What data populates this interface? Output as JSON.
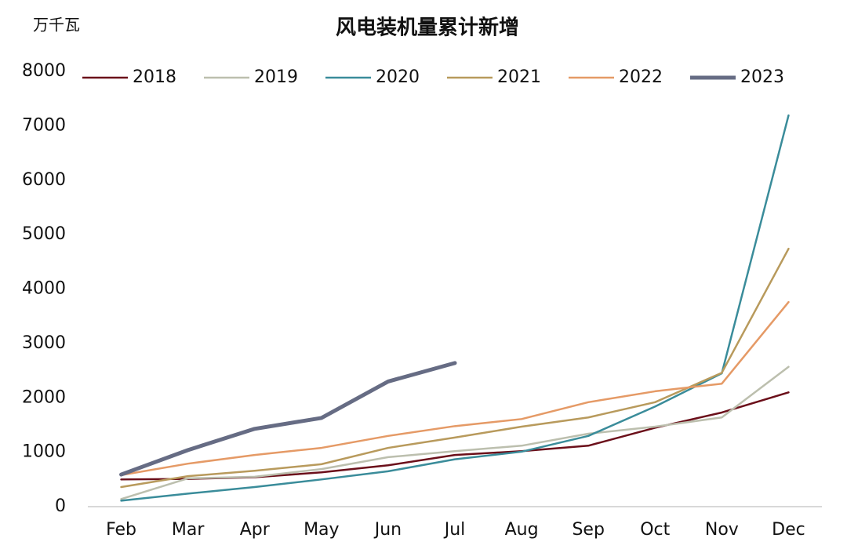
{
  "chart_data": {
    "type": "line",
    "title": "风电装机量累计新增",
    "y_label": "万千瓦",
    "categories": [
      "Feb",
      "Mar",
      "Apr",
      "May",
      "Jun",
      "Jul",
      "Aug",
      "Sep",
      "Oct",
      "Nov",
      "Dec"
    ],
    "series": [
      {
        "name": "2018",
        "color": "#6b0f1a",
        "width": 2.5,
        "values": [
          500,
          510,
          540,
          630,
          760,
          950,
          1020,
          1120,
          1450,
          1730,
          2100
        ]
      },
      {
        "name": "2019",
        "color": "#bcbfae",
        "width": 2.5,
        "values": [
          140,
          520,
          550,
          690,
          910,
          1020,
          1120,
          1340,
          1470,
          1640,
          2570
        ]
      },
      {
        "name": "2020",
        "color": "#3a8c9a",
        "width": 2.5,
        "values": [
          110,
          240,
          360,
          500,
          650,
          870,
          1010,
          1300,
          1840,
          2450,
          7190
        ]
      },
      {
        "name": "2021",
        "color": "#b89a5c",
        "width": 2.5,
        "values": [
          360,
          560,
          660,
          780,
          1080,
          1270,
          1470,
          1640,
          1920,
          2460,
          4740
        ]
      },
      {
        "name": "2022",
        "color": "#e59a66",
        "width": 2.5,
        "values": [
          580,
          790,
          950,
          1080,
          1300,
          1480,
          1610,
          1920,
          2120,
          2260,
          3760
        ]
      },
      {
        "name": "2023",
        "color": "#666c84",
        "width": 5,
        "values": [
          590,
          1040,
          1430,
          1630,
          2300,
          2640,
          null,
          null,
          null,
          null,
          null
        ]
      }
    ],
    "ylim": [
      0,
      8000
    ],
    "yticks": [
      0,
      1000,
      2000,
      3000,
      4000,
      5000,
      6000,
      7000,
      8000
    ],
    "grid": false,
    "legend": "top"
  }
}
